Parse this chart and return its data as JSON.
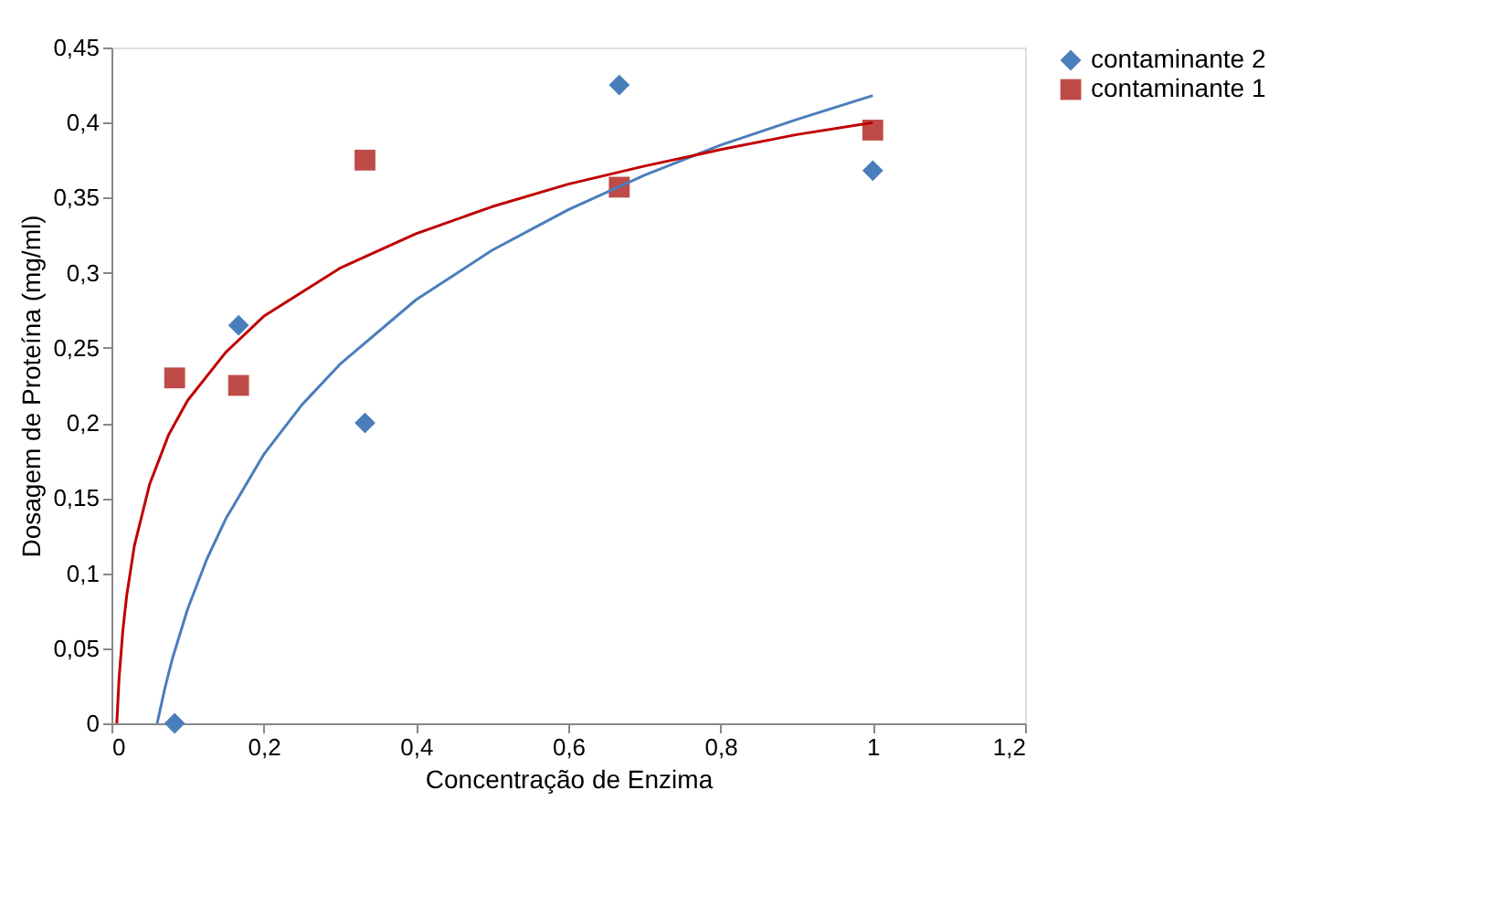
{
  "chart_data": {
    "type": "scatter",
    "xlabel": "Concentração de Enzima",
    "ylabel": "Dosagem de Proteína (mg/ml)",
    "xlim": [
      0,
      1.2
    ],
    "ylim": [
      0,
      0.45
    ],
    "xticks": [
      0,
      {
        "value": 0.2,
        "label": "0,2"
      },
      {
        "value": 0.4,
        "label": "0,4"
      },
      {
        "value": 0.6,
        "label": "0,6"
      },
      {
        "value": 0.8,
        "label": "0,8"
      },
      1,
      {
        "value": 1.2,
        "label": "1,2"
      }
    ],
    "yticks": [
      0,
      {
        "value": 0.05,
        "label": "0,05"
      },
      {
        "value": 0.1,
        "label": "0,1"
      },
      {
        "value": 0.15,
        "label": "0,15"
      },
      {
        "value": 0.2,
        "label": "0,2"
      },
      {
        "value": 0.25,
        "label": "0,25"
      },
      {
        "value": 0.3,
        "label": "0,3"
      },
      {
        "value": 0.35,
        "label": "0,35"
      },
      {
        "value": 0.4,
        "label": "0,4"
      },
      {
        "value": 0.45,
        "label": "0,45"
      }
    ],
    "grid": false,
    "legend": "right",
    "series": [
      {
        "name": "contaminante 2",
        "marker": "diamond",
        "color": "#4a7ebb",
        "x": [
          0.083,
          0.167,
          0.333,
          0.667,
          1.0
        ],
        "values": [
          0,
          0.265,
          0.2,
          0.425,
          0.368
        ]
      },
      {
        "name": "contaminante 1",
        "marker": "square",
        "color": "#be4b48",
        "x": [
          0.083,
          0.167,
          0.333,
          0.667,
          1.0
        ],
        "values": [
          0.23,
          0.225,
          0.375,
          0.357,
          0.395
        ]
      },
      {
        "type": "line",
        "color": "#4a7ebb",
        "x": [
          0.06,
          0.07,
          0.08,
          0.1,
          0.125,
          0.15,
          0.2,
          0.25,
          0.3,
          0.4,
          0.5,
          0.6,
          0.7,
          0.8,
          0.9,
          1.0
        ],
        "values": [
          0,
          0.023,
          0.043,
          0.076,
          0.109,
          0.136,
          0.179,
          0.212,
          0.239,
          0.282,
          0.315,
          0.342,
          0.365,
          0.385,
          0.402,
          0.418
        ]
      },
      {
        "type": "line",
        "color": "#c00000",
        "x": [
          0.007,
          0.01,
          0.015,
          0.02,
          0.03,
          0.05,
          0.075,
          0.1,
          0.15,
          0.2,
          0.3,
          0.4,
          0.5,
          0.6,
          0.7,
          0.8,
          0.9,
          1.0
        ],
        "values": [
          0,
          0.03,
          0.062,
          0.085,
          0.118,
          0.159,
          0.192,
          0.215,
          0.247,
          0.271,
          0.303,
          0.326,
          0.344,
          0.359,
          0.371,
          0.382,
          0.392,
          0.4
        ]
      }
    ]
  }
}
